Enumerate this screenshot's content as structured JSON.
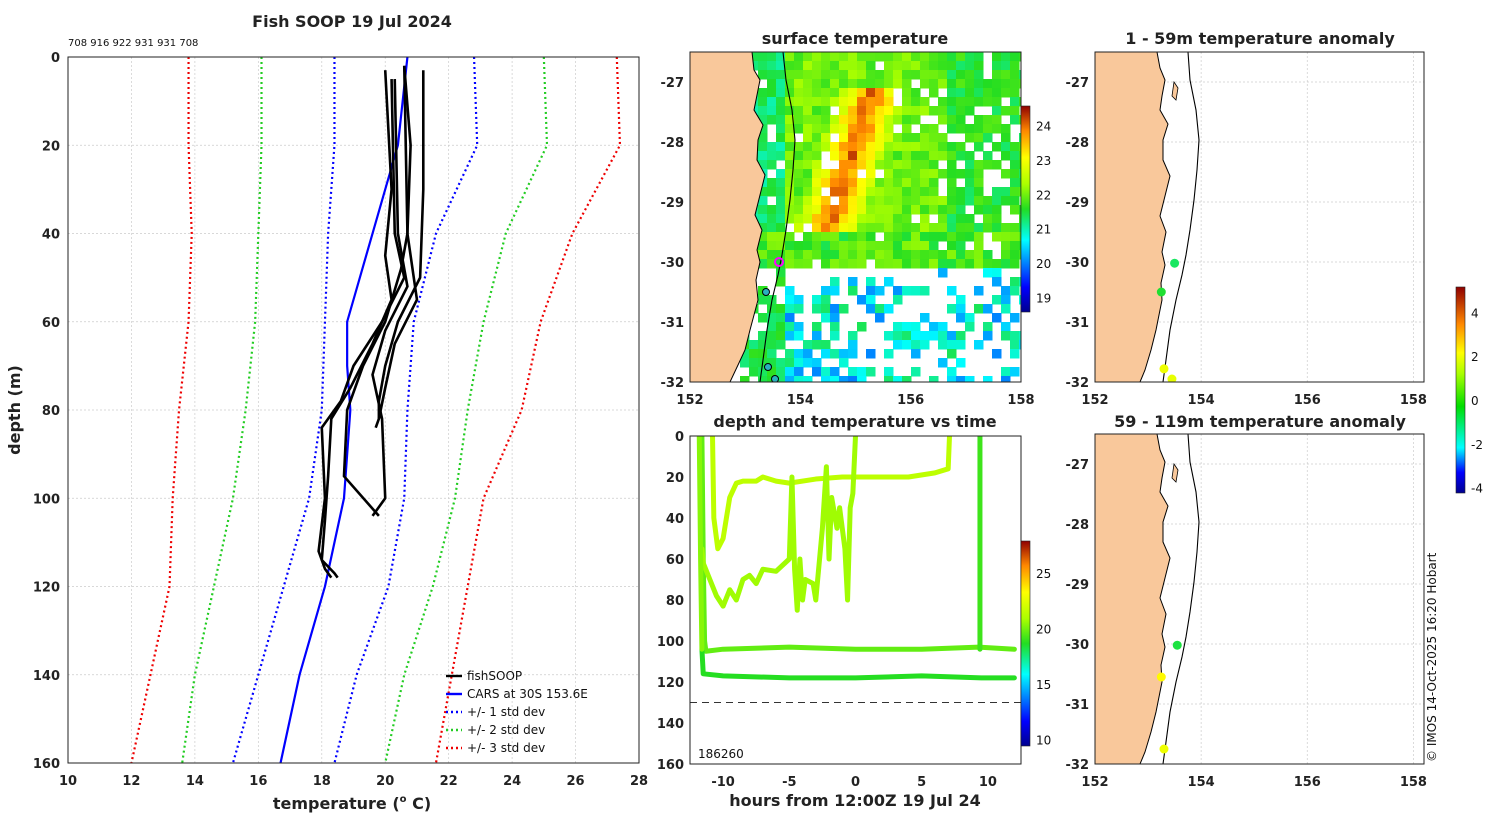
{
  "chart_data": [
    {
      "type": "line",
      "title": "Fish SOOP 19 Jul 2024",
      "subtitle": "708 916 922 931 931 708",
      "xlabel": "temperature (",
      "xlabel_super": "o",
      "xlabel_tail": " C)",
      "ylabel": "depth (m)",
      "xlim": [
        10,
        28
      ],
      "ylim": [
        160,
        0
      ],
      "xticks": [
        "10",
        "12",
        "14",
        "16",
        "18",
        "20",
        "22",
        "24",
        "26",
        "28"
      ],
      "yticks": [
        "0",
        "20",
        "40",
        "60",
        "80",
        "100",
        "120",
        "140",
        "160"
      ],
      "legend": [
        {
          "label": "fishSOOP",
          "color": "#000000",
          "style": "solid"
        },
        {
          "label": "CARS at 30S 153.6E",
          "color": "#0000ff",
          "style": "solid"
        },
        {
          "label": "+/- 1 std dev",
          "color": "#0000ff",
          "style": "dotted"
        },
        {
          "label": "+/- 2 std dev",
          "color": "#22cc22",
          "style": "dotted"
        },
        {
          "label": "+/- 3 std dev",
          "color": "#ee0000",
          "style": "dotted"
        }
      ],
      "series": [
        {
          "name": "CARS",
          "depth": [
            0,
            20,
            40,
            50,
            60,
            70,
            80,
            100,
            120,
            140,
            160
          ],
          "temp": [
            20.7,
            20.4,
            19.6,
            19.2,
            18.8,
            18.8,
            18.9,
            18.7,
            18.1,
            17.3,
            16.7
          ]
        },
        {
          "name": "-1",
          "depth": [
            0,
            20,
            40,
            60,
            80,
            100,
            120,
            140,
            160
          ],
          "temp": [
            18.4,
            18.4,
            18.2,
            18.1,
            18.0,
            17.6,
            16.8,
            16.0,
            15.2
          ]
        },
        {
          "name": "+1",
          "depth": [
            0,
            20,
            40,
            60,
            80,
            100,
            120,
            140,
            160
          ],
          "temp": [
            22.8,
            22.9,
            21.6,
            20.9,
            20.7,
            20.6,
            20.1,
            19.1,
            18.4
          ]
        },
        {
          "name": "-2",
          "depth": [
            0,
            20,
            40,
            60,
            80,
            100,
            120,
            140,
            160
          ],
          "temp": [
            16.1,
            16.1,
            16.0,
            15.9,
            15.6,
            15.2,
            14.6,
            14.0,
            13.6
          ]
        },
        {
          "name": "+2",
          "depth": [
            0,
            20,
            40,
            60,
            80,
            100,
            120,
            140,
            160
          ],
          "temp": [
            25.0,
            25.1,
            23.8,
            23.1,
            22.6,
            22.2,
            21.5,
            20.6,
            20.0
          ]
        },
        {
          "name": "-3",
          "depth": [
            0,
            20,
            40,
            60,
            80,
            100,
            120,
            140,
            160
          ],
          "temp": [
            13.8,
            13.8,
            13.9,
            13.8,
            13.5,
            13.3,
            13.2,
            12.6,
            12.0
          ]
        },
        {
          "name": "+3",
          "depth": [
            0,
            20,
            40,
            60,
            80,
            100,
            120,
            140,
            160
          ],
          "temp": [
            27.3,
            27.4,
            25.9,
            24.9,
            24.3,
            23.1,
            22.6,
            22.1,
            21.6
          ]
        },
        {
          "name": "fish1",
          "depth": [
            2,
            40,
            55,
            65,
            75,
            82,
            84
          ],
          "temp": [
            20.6,
            20.7,
            21.0,
            20.3,
            20.0,
            19.8,
            19.7
          ]
        },
        {
          "name": "fish2",
          "depth": [
            3,
            30,
            50,
            60,
            70,
            78,
            82
          ],
          "temp": [
            21.2,
            21.2,
            21.1,
            20.4,
            20.0,
            19.8,
            19.8
          ]
        },
        {
          "name": "fish3",
          "depth": [
            5,
            40,
            52,
            62,
            72,
            82,
            100,
            104
          ],
          "temp": [
            20.3,
            20.4,
            20.7,
            20.0,
            19.6,
            19.9,
            20.0,
            19.6
          ]
        },
        {
          "name": "fish4",
          "depth": [
            2,
            20,
            40,
            48,
            60,
            70,
            80,
            95,
            104
          ],
          "temp": [
            20.6,
            20.8,
            20.7,
            20.5,
            20.0,
            19.3,
            18.8,
            18.7,
            19.8
          ]
        },
        {
          "name": "fish5",
          "depth": [
            3,
            30,
            45,
            55,
            65,
            75,
            82,
            95,
            105,
            114,
            117,
            118
          ],
          "temp": [
            20.0,
            20.2,
            20.0,
            20.2,
            19.6,
            18.9,
            18.3,
            18.2,
            18.1,
            18.0,
            18.4,
            18.5
          ]
        },
        {
          "name": "fish6",
          "depth": [
            5,
            40,
            50,
            60,
            70,
            78,
            84,
            100,
            112,
            116,
            118
          ],
          "temp": [
            20.2,
            20.3,
            20.6,
            19.9,
            19.0,
            18.6,
            18.0,
            18.1,
            17.9,
            18.1,
            18.3
          ]
        }
      ]
    },
    {
      "type": "heatmap",
      "title": "surface temperature",
      "xlim": [
        152,
        158
      ],
      "ylim": [
        -32,
        -26.5
      ],
      "xticks": [
        "152",
        "154",
        "156",
        "158"
      ],
      "yticks": [
        "-27",
        "-28",
        "-29",
        "-30",
        "-31",
        "-32"
      ],
      "colorbar": {
        "min": 18.6,
        "max": 24.6,
        "ticks": [
          "19",
          "20",
          "21",
          "22",
          "23",
          "24"
        ]
      }
    },
    {
      "type": "scatter",
      "title": "depth and temperature vs time",
      "xlabel": "hours from 12:00Z 19 Jul 24",
      "xlim": [
        -12.5,
        12.5
      ],
      "ylim": [
        160,
        0
      ],
      "xticks": [
        "-10",
        "-5",
        "0",
        "5",
        "10"
      ],
      "yticks": [
        "0",
        "20",
        "40",
        "60",
        "80",
        "100",
        "120",
        "140",
        "160"
      ],
      "reference_depth": 130,
      "overlay_text": "186260",
      "colorbar": {
        "min": 9.5,
        "max": 28,
        "ticks": [
          "10",
          "15",
          "20",
          "25"
        ]
      }
    },
    {
      "type": "scatter",
      "title": "1 - 59m temperature anomaly",
      "xlim": [
        152,
        158.2
      ],
      "ylim": [
        -32,
        -26.5
      ],
      "xticks": [
        "152",
        "154",
        "156",
        "158"
      ],
      "yticks": [
        "-27",
        "-28",
        "-29",
        "-30",
        "-31",
        "-32"
      ],
      "points": [
        {
          "lon": 153.5,
          "lat": -30.02,
          "anom": 0.1
        },
        {
          "lon": 153.25,
          "lat": -30.5,
          "anom": 0.4
        },
        {
          "lon": 153.3,
          "lat": -31.78,
          "anom": 2.6
        },
        {
          "lon": 153.45,
          "lat": -31.95,
          "anom": 2.5
        }
      ]
    },
    {
      "type": "scatter",
      "title": "59 - 119m temperature anomaly",
      "xlim": [
        152,
        158.2
      ],
      "ylim": [
        -32,
        -26.5
      ],
      "xticks": [
        "152",
        "154",
        "156",
        "158"
      ],
      "yticks": [
        "-27",
        "-28",
        "-29",
        "-30",
        "-31",
        "-32"
      ],
      "points": [
        {
          "lon": 153.55,
          "lat": -30.02,
          "anom": 0.3
        },
        {
          "lon": 153.25,
          "lat": -30.55,
          "anom": 2.9
        },
        {
          "lon": 153.3,
          "lat": -31.75,
          "anom": 2.6
        }
      ],
      "colorbar": {
        "min": -4.2,
        "max": 5.2,
        "ticks": [
          "4",
          "2",
          "0",
          "-2",
          "-4"
        ]
      }
    }
  ],
  "credit": "© IMOS 14-Oct-2025 16:20 Hobart"
}
